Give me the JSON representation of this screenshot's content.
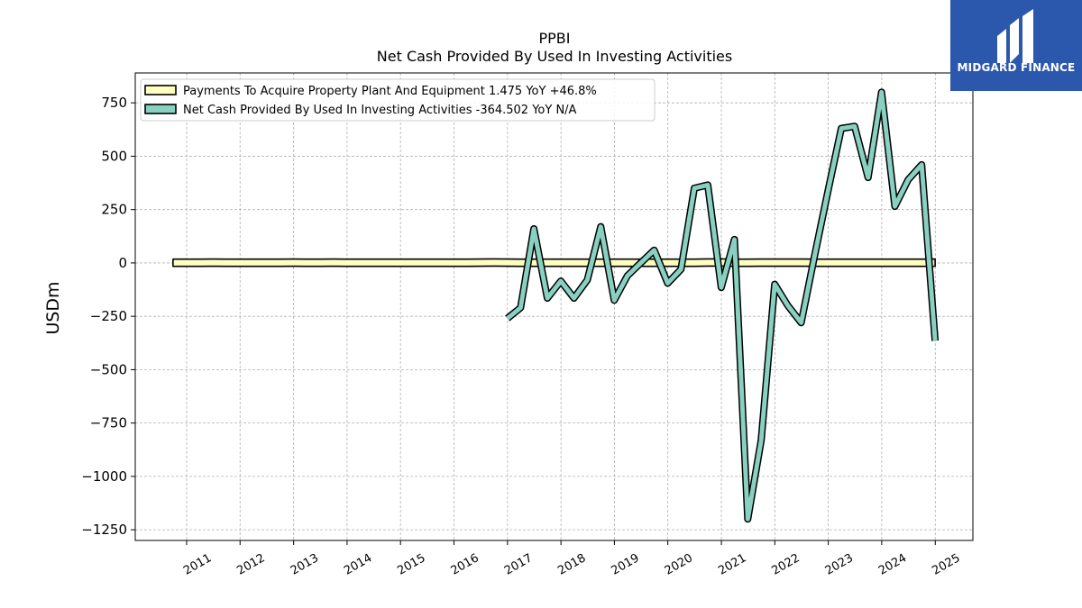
{
  "logo": {
    "text": "MIDGARD FINANCE",
    "background": "#2b58ad"
  },
  "chart_data": {
    "type": "line",
    "title": "PPBI",
    "subtitle": "Net Cash Provided By Used In Investing Activities",
    "ylabel": "USDm",
    "xlabel": "",
    "xlim": [
      "2010-01-15",
      "2025-09-15"
    ],
    "ylim": [
      -1300,
      890
    ],
    "yticks": [
      750,
      500,
      250,
      0,
      -250,
      -500,
      -750,
      -1000,
      -1250
    ],
    "ytick_labels": [
      "750",
      "500",
      "250",
      "0",
      "−250",
      "−500",
      "−750",
      "−1000",
      "−1250"
    ],
    "xticks": [
      "2011-01-01",
      "2012-01-01",
      "2013-01-01",
      "2014-01-01",
      "2015-01-01",
      "2016-01-01",
      "2017-01-01",
      "2018-01-01",
      "2019-01-01",
      "2020-01-01",
      "2021-01-01",
      "2022-01-01",
      "2023-01-01",
      "2024-01-01",
      "2025-01-01"
    ],
    "xtick_labels": [
      "2011",
      "2012",
      "2013",
      "2014",
      "2015",
      "2016",
      "2017",
      "2018",
      "2019",
      "2020",
      "2021",
      "2022",
      "2023",
      "2024",
      "2025"
    ],
    "grid": true,
    "legend_position": "top-left",
    "series": [
      {
        "name": "Payments To Acquire Property Plant And Equipment",
        "legend_label": "Payments To Acquire Property Plant And Equipment  1.475 YoY +46.8%",
        "color": "#ffffc0",
        "style": "band",
        "points": [
          [
            "2010-09-30",
            1.0
          ],
          [
            "2010-12-31",
            1.0
          ],
          [
            "2011-03-31",
            1.0
          ],
          [
            "2011-06-30",
            1.5
          ],
          [
            "2011-09-30",
            1.0
          ],
          [
            "2011-12-31",
            1.0
          ],
          [
            "2012-03-31",
            1.0
          ],
          [
            "2012-06-30",
            1.0
          ],
          [
            "2012-09-30",
            1.0
          ],
          [
            "2012-12-31",
            1.5
          ],
          [
            "2013-03-31",
            1.0
          ],
          [
            "2013-06-30",
            1.0
          ],
          [
            "2013-09-30",
            1.5
          ],
          [
            "2013-12-31",
            1.0
          ],
          [
            "2014-03-31",
            1.0
          ],
          [
            "2014-06-30",
            1.0
          ],
          [
            "2014-09-30",
            1.0
          ],
          [
            "2014-12-31",
            1.0
          ],
          [
            "2015-03-31",
            1.0
          ],
          [
            "2015-06-30",
            1.0
          ],
          [
            "2015-09-30",
            1.0
          ],
          [
            "2015-12-31",
            1.0
          ],
          [
            "2016-03-31",
            1.0
          ],
          [
            "2016-06-30",
            1.5
          ],
          [
            "2016-09-30",
            2.0
          ],
          [
            "2016-12-31",
            1.5
          ],
          [
            "2017-03-31",
            1.0
          ],
          [
            "2017-06-30",
            1.0
          ],
          [
            "2017-09-30",
            1.0
          ],
          [
            "2017-12-31",
            1.0
          ],
          [
            "2018-03-31",
            1.0
          ],
          [
            "2018-06-30",
            1.0
          ],
          [
            "2018-09-30",
            1.0
          ],
          [
            "2018-12-31",
            1.0
          ],
          [
            "2019-03-31",
            1.0
          ],
          [
            "2019-06-30",
            1.0
          ],
          [
            "2019-09-30",
            1.0
          ],
          [
            "2019-12-31",
            1.0
          ],
          [
            "2020-03-31",
            1.0
          ],
          [
            "2020-06-30",
            1.0
          ],
          [
            "2020-09-30",
            2.0
          ],
          [
            "2020-12-31",
            2.0
          ],
          [
            "2021-03-31",
            1.0
          ],
          [
            "2021-06-30",
            1.0
          ],
          [
            "2021-09-30",
            1.5
          ],
          [
            "2021-12-31",
            1.5
          ],
          [
            "2022-03-31",
            1.5
          ],
          [
            "2022-06-30",
            1.5
          ],
          [
            "2022-09-30",
            1.0
          ],
          [
            "2022-12-31",
            1.0
          ],
          [
            "2023-03-31",
            1.0
          ],
          [
            "2023-06-30",
            1.0
          ],
          [
            "2023-09-30",
            1.0
          ],
          [
            "2023-12-31",
            1.0
          ],
          [
            "2024-03-31",
            1.0
          ],
          [
            "2024-06-30",
            1.0
          ],
          [
            "2024-09-30",
            1.0
          ],
          [
            "2024-12-31",
            1.475
          ]
        ]
      },
      {
        "name": "Net Cash Provided By Used In Investing Activities",
        "legend_label": "Net Cash Provided By Used In Investing Activities  -364.502 YoY N/A",
        "color": "#88d0c0",
        "style": "line",
        "points": [
          [
            "2016-12-31",
            -260
          ],
          [
            "2017-03-31",
            -210
          ],
          [
            "2017-06-30",
            160
          ],
          [
            "2017-09-30",
            -165
          ],
          [
            "2017-12-31",
            -85
          ],
          [
            "2018-03-31",
            -165
          ],
          [
            "2018-06-30",
            -80
          ],
          [
            "2018-09-30",
            170
          ],
          [
            "2018-12-31",
            -175
          ],
          [
            "2019-03-31",
            -60
          ],
          [
            "2019-06-30",
            0
          ],
          [
            "2019-09-30",
            60
          ],
          [
            "2019-12-31",
            -95
          ],
          [
            "2020-03-31",
            -30
          ],
          [
            "2020-06-30",
            350
          ],
          [
            "2020-09-30",
            365
          ],
          [
            "2020-12-31",
            -115
          ],
          [
            "2021-03-31",
            110
          ],
          [
            "2021-06-30",
            -1200
          ],
          [
            "2021-09-30",
            -830
          ],
          [
            "2021-12-31",
            -100
          ],
          [
            "2022-03-31",
            -200
          ],
          [
            "2022-06-30",
            -280
          ],
          [
            "2022-09-30",
            35
          ],
          [
            "2022-12-31",
            340
          ],
          [
            "2023-03-31",
            630
          ],
          [
            "2023-06-30",
            640
          ],
          [
            "2023-09-30",
            400
          ],
          [
            "2023-12-31",
            800
          ],
          [
            "2024-03-31",
            265
          ],
          [
            "2024-06-30",
            390
          ],
          [
            "2024-09-30",
            460
          ],
          [
            "2024-12-31",
            -364.502
          ]
        ]
      }
    ]
  }
}
